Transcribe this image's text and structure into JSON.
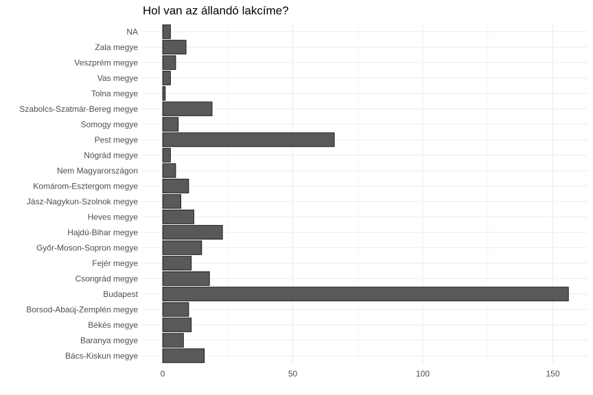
{
  "chart_data": {
    "type": "bar",
    "orientation": "horizontal",
    "title": "Hol van az állandó lakcíme?",
    "xlabel": "",
    "ylabel": "",
    "categories": [
      "NA",
      "Zala megye",
      "Veszprém megye",
      "Vas megye",
      "Tolna megye",
      "Szabolcs-Szatmár-Bereg megye",
      "Somogy megye",
      "Pest megye",
      "Nógrád megye",
      "Nem Magyarországon",
      "Komárom-Esztergom megye",
      "Jász-Nagykun-Szolnok megye",
      "Heves megye",
      "Hajdú-Bihar megye",
      "Győr-Moson-Sopron megye",
      "Fejér megye",
      "Csongrád megye",
      "Budapest",
      "Borsod-Abaúj-Zemplén megye",
      "Békés megye",
      "Baranya megye",
      "Bács-Kiskun megye"
    ],
    "values": [
      3,
      9,
      5,
      3,
      1,
      19,
      6,
      66,
      3,
      5,
      10,
      7,
      12,
      23,
      15,
      11,
      18,
      156,
      10,
      11,
      8,
      16
    ],
    "xlim": [
      0,
      163
    ],
    "xticks": [
      0,
      50,
      100,
      150
    ],
    "grid": true,
    "legend": "none",
    "colors": {
      "bar_fill": "#595959",
      "bar_stroke": "#000000",
      "grid_major": "#ebebeb",
      "grid_minor": "#f5f5f5",
      "text": "#4d4d4d"
    }
  }
}
